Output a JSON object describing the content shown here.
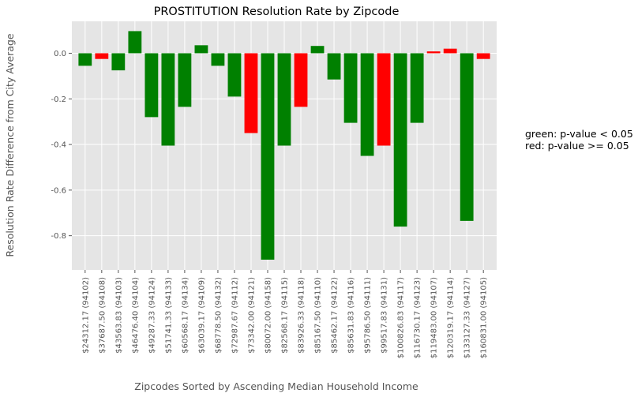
{
  "chart_data": {
    "type": "bar",
    "title": "PROSTITUTION Resolution Rate by Zipcode",
    "xlabel": "Zipcodes Sorted by Ascending Median Household Income",
    "ylabel": "Resolution Rate Difference from City Average",
    "ylim": [
      -0.95,
      0.14
    ],
    "yticks": [
      0.0,
      -0.2,
      -0.4,
      -0.6,
      -0.8
    ],
    "ytick_labels": [
      "0.0",
      "-0.2",
      "-0.4",
      "-0.6",
      "-0.8"
    ],
    "grid": true,
    "categories": [
      "$24312.17 (94102)",
      "$37687.50 (94108)",
      "$43563.83 (94103)",
      "$46476.40 (94104)",
      "$49287.33 (94124)",
      "$51741.33 (94133)",
      "$60568.17 (94134)",
      "$63039.17 (94109)",
      "$68778.50 (94132)",
      "$72987.67 (94112)",
      "$73342.00 (94121)",
      "$80072.00 (94158)",
      "$82568.17 (94115)",
      "$83926.33 (94118)",
      "$85167.50 (94110)",
      "$85462.17 (94122)",
      "$85631.83 (94116)",
      "$95786.50 (94111)",
      "$99517.83 (94131)",
      "$100826.83 (94117)",
      "$116730.17 (94123)",
      "$119483.00 (94107)",
      "$120319.17 (94114)",
      "$133127.33 (94127)",
      "$160831.00 (94105)"
    ],
    "values": [
      -0.055,
      -0.025,
      -0.075,
      0.097,
      -0.28,
      -0.405,
      -0.235,
      0.035,
      -0.055,
      -0.19,
      -0.35,
      -0.905,
      -0.405,
      -0.235,
      0.032,
      -0.115,
      -0.305,
      -0.45,
      -0.405,
      -0.76,
      -0.305,
      0.008,
      0.02,
      -0.735,
      -0.025
    ],
    "significant": [
      true,
      false,
      true,
      true,
      true,
      true,
      true,
      true,
      true,
      true,
      false,
      true,
      true,
      false,
      true,
      true,
      true,
      true,
      false,
      true,
      true,
      false,
      false,
      true,
      false
    ]
  },
  "legend_note": {
    "line1": "green: p-value < 0.05",
    "line2": "red: p-value >= 0.05"
  },
  "colors": {
    "significant": "#008000",
    "not_significant": "#ff0000",
    "plot_background": "#e5e5e5",
    "grid": "#ffffff"
  }
}
